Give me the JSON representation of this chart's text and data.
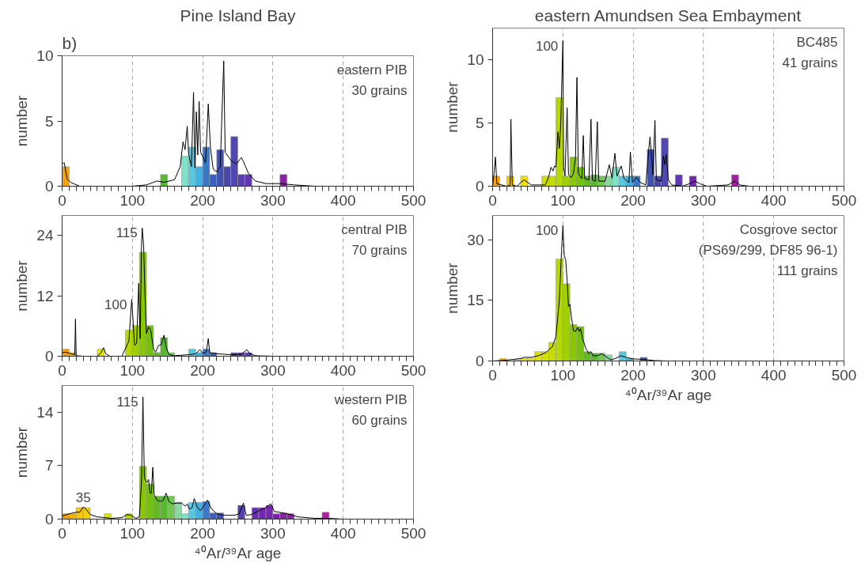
{
  "chart_data": [
    {
      "type": "histogram",
      "title": "Pine Island Bay",
      "ylabel": "number",
      "annotations": [
        "b)",
        "eastern PIB",
        "30 grains"
      ],
      "xlim": [
        0,
        500
      ],
      "ylim": [
        0,
        10
      ],
      "xticks": [
        0,
        100,
        200,
        300,
        400,
        500
      ],
      "yticks": [
        0,
        5,
        10
      ],
      "grid": "x",
      "bins": [
        0,
        10,
        20,
        30,
        40,
        50,
        60,
        70,
        80,
        90,
        100,
        110,
        120,
        130,
        140,
        150,
        160,
        170,
        180,
        190,
        200,
        210,
        220,
        230,
        240,
        250,
        260,
        270,
        280,
        290,
        300,
        310,
        320
      ],
      "values": [
        1.5,
        0,
        0,
        0,
        0,
        0,
        0,
        0,
        0,
        0,
        0,
        0,
        0,
        0,
        0.9,
        0,
        0,
        2.3,
        3,
        1.5,
        3,
        0.9,
        2.8,
        1.5,
        3.8,
        0.9,
        0.9,
        0,
        0,
        0,
        0,
        0.9
      ],
      "colors": [
        "#f0a010",
        "#f5b400",
        "#f7c600",
        "#f5d000",
        "#ece000",
        "#e6e600",
        "#dde400",
        "#d2e000",
        "#c6dc00",
        "#b4d800",
        "#9fd000",
        "#88c800",
        "#74c010",
        "#62ba20",
        "#58b830",
        "#70c850",
        "#88d8a0",
        "#80e0c8",
        "#58c8e0",
        "#40b0e0",
        "#3c78c8",
        "#3c60c0",
        "#4050b0",
        "#4848a8",
        "#5048b0",
        "#5840b0",
        "#6038b0",
        "#6830b0",
        "#7028b0",
        "#7828b0",
        "#8020b0",
        "#8820a8"
      ],
      "series": [
        {
          "type": "line",
          "color": "#000000",
          "x": [
            0,
            3,
            7,
            12,
            25,
            100,
            120,
            135,
            145,
            160,
            168,
            172,
            175,
            178,
            180,
            184,
            187,
            189,
            191,
            193,
            195,
            197,
            200,
            204,
            208,
            211,
            215,
            220,
            225,
            230,
            232,
            240,
            248,
            255,
            258,
            265,
            275,
            290,
            310,
            330,
            360,
            500
          ],
          "values": [
            1.7,
            1.8,
            0.6,
            0.3,
            0,
            0,
            0.1,
            0.4,
            0.3,
            0.5,
            1.5,
            3.4,
            2.8,
            4.6,
            2.5,
            1.5,
            7.2,
            1.4,
            5.7,
            2.4,
            6.5,
            2.6,
            2.3,
            1.8,
            6.3,
            3.0,
            1.3,
            1.1,
            1.5,
            9.6,
            2.6,
            2.0,
            1.7,
            2.2,
            1.9,
            1.0,
            0.4,
            0.2,
            0.2,
            0.1,
            0,
            0
          ]
        }
      ]
    },
    {
      "type": "histogram",
      "title": "eastern Amundsen Sea Embayment",
      "ylabel": "number",
      "annotations": [
        {
          "text": "100",
          "x": 100,
          "y": 11.5
        },
        "BC485",
        "41 grains"
      ],
      "xlim": [
        0,
        500
      ],
      "ylim": [
        0,
        12.5
      ],
      "xticks": [
        0,
        100,
        200,
        300,
        400,
        500
      ],
      "yticks": [
        0,
        5,
        10
      ],
      "grid": "x",
      "bins": [
        0,
        10,
        20,
        30,
        40,
        50,
        60,
        70,
        80,
        90,
        100,
        110,
        120,
        130,
        140,
        150,
        160,
        170,
        180,
        190,
        200,
        210,
        220,
        230,
        240,
        250,
        260,
        270,
        280,
        290,
        300,
        310,
        320,
        330,
        340,
        350
      ],
      "values": [
        0.8,
        0,
        0.8,
        0,
        0.8,
        0,
        0,
        0.8,
        0.8,
        7.0,
        0.8,
        2.3,
        1.5,
        0.8,
        0.9,
        0.8,
        0.8,
        1.5,
        0.8,
        0.8,
        0.8,
        0,
        2.9,
        0.8,
        3.8,
        0,
        0.9,
        0,
        0.8,
        0,
        0,
        0,
        0,
        0,
        0.9
      ],
      "colors": [
        "#f0a010",
        "#f5b400",
        "#f7c600",
        "#f5d000",
        "#ece000",
        "#e6e600",
        "#dde400",
        "#d2e000",
        "#c6dc00",
        "#b4d800",
        "#9fd000",
        "#88c800",
        "#74c010",
        "#62ba20",
        "#58b830",
        "#70c850",
        "#88d8a0",
        "#80e0c8",
        "#58c8e0",
        "#40b0e0",
        "#3c78c8",
        "#3c60c0",
        "#4050b0",
        "#4848a8",
        "#5048b0",
        "#5840b0",
        "#6038b0",
        "#6830b0",
        "#7028b0",
        "#7828b0",
        "#8020b0",
        "#8820a8",
        "#9020a8",
        "#9820a8",
        "#a020a0"
      ],
      "series": [
        {
          "type": "line",
          "color": "#000000",
          "x": [
            0,
            2,
            4,
            6,
            20,
            25,
            26,
            28,
            35,
            40,
            45,
            50,
            55,
            75,
            80,
            83,
            86,
            88,
            90,
            93,
            95,
            97,
            100,
            101,
            103,
            106,
            108,
            112,
            115,
            118,
            120,
            122,
            127,
            129,
            131,
            137,
            140,
            142,
            146,
            149,
            151,
            160,
            166,
            170,
            174,
            177,
            183,
            187,
            194,
            196,
            199,
            205,
            210,
            218,
            222,
            224,
            226,
            228,
            231,
            233,
            240,
            243,
            245,
            247,
            250,
            255,
            270,
            280,
            288,
            295,
            305,
            335,
            345,
            352,
            365,
            500
          ],
          "values": [
            0,
            1,
            2.3,
            0.2,
            0,
            0.1,
            5.3,
            0.1,
            0,
            0.3,
            0.5,
            0.3,
            0.1,
            0.1,
            0.8,
            1.5,
            1.2,
            1.6,
            1.5,
            4.3,
            3.0,
            5,
            11.5,
            1.5,
            0.8,
            6.2,
            0.9,
            0.7,
            1.0,
            2.3,
            8.6,
            1.0,
            0.6,
            4.0,
            0.6,
            0.5,
            5.3,
            0.5,
            0.4,
            5.1,
            0.4,
            0.4,
            1.7,
            0.6,
            2.6,
            0.8,
            1.6,
            0.6,
            0.3,
            2.7,
            0.3,
            0.7,
            0.3,
            0.1,
            2.8,
            3.9,
            2.5,
            0.9,
            5.2,
            0.5,
            0.4,
            2.4,
            1.7,
            2.5,
            0.5,
            0.1,
            0,
            0.2,
            0.4,
            0.2,
            0,
            0.1,
            0.4,
            0.1,
            0,
            0
          ]
        }
      ]
    },
    {
      "type": "histogram",
      "ylabel": "number",
      "annotations": [
        {
          "text": "100",
          "x": 99,
          "y": 11.3
        },
        {
          "text": "115",
          "x": 114,
          "y": 25.5
        },
        "central PIB",
        "70 grains"
      ],
      "xlim": [
        0,
        500
      ],
      "ylim": [
        0,
        28
      ],
      "xticks": [
        0,
        100,
        200,
        300,
        400,
        500
      ],
      "yticks": [
        0,
        12,
        24
      ],
      "grid": "x",
      "bins": [
        0,
        10,
        20,
        30,
        40,
        50,
        60,
        70,
        80,
        90,
        100,
        110,
        120,
        130,
        140,
        150,
        160,
        170,
        180,
        190,
        200,
        210,
        220,
        230,
        240,
        250,
        260,
        270
      ],
      "values": [
        1.4,
        0.7,
        0,
        0,
        0,
        1.4,
        0,
        0,
        0,
        5.2,
        6.1,
        20.7,
        6.1,
        0.7,
        3.7,
        0.7,
        0,
        0,
        1.4,
        0.7,
        1.4,
        0.7,
        0,
        0,
        0.7,
        0.7,
        0.7
      ],
      "colors": [
        "#f0a010",
        "#f5b400",
        "#f7c600",
        "#f5d000",
        "#ece000",
        "#e6e600",
        "#dde400",
        "#d2e000",
        "#c6dc00",
        "#b4d800",
        "#9fd000",
        "#88c800",
        "#74c010",
        "#62ba20",
        "#58b830",
        "#70c850",
        "#88d8a0",
        "#80e0c8",
        "#58c8e0",
        "#40b0e0",
        "#3c78c8",
        "#3c60c0",
        "#4050b0",
        "#4848a8",
        "#5048b0",
        "#5840b0",
        "#6038b0"
      ],
      "series": [
        {
          "type": "line",
          "color": "#000000",
          "x": [
            0,
            5,
            10,
            18,
            19,
            20,
            30,
            50,
            55,
            59,
            62,
            68,
            85,
            90,
            95,
            99,
            101,
            103,
            106,
            109,
            111,
            113,
            114,
            116,
            118,
            120,
            123,
            126,
            130,
            133,
            137,
            141,
            145,
            148,
            152,
            160,
            180,
            190,
            196,
            200,
            205,
            208,
            210,
            220,
            240,
            255,
            263,
            267,
            275,
            300,
            500
          ],
          "values": [
            0.7,
            0.8,
            0.6,
            0.3,
            7.4,
            0.1,
            0,
            0,
            0.6,
            1.7,
            0.5,
            0,
            0,
            1.5,
            3.0,
            11.3,
            7,
            2.2,
            2.5,
            14.5,
            3.5,
            22,
            25.5,
            22,
            12,
            4.5,
            5.8,
            5.2,
            1.5,
            0.8,
            2.1,
            2.3,
            4.2,
            1.8,
            0.3,
            0.1,
            0.3,
            0.5,
            1.3,
            0.6,
            0.8,
            3.5,
            0.7,
            0.5,
            0.3,
            0.4,
            1.3,
            0.5,
            0.1,
            0,
            0
          ]
        }
      ]
    },
    {
      "type": "histogram",
      "xlabel": "⁴⁰Ar/³⁹Ar age",
      "ylabel": "number",
      "annotations": [
        {
          "text": "100",
          "x": 100,
          "y": 33.5
        },
        "Cosgrove sector",
        "(PS69/299, DF85 96-1)",
        "111 grains"
      ],
      "xlim": [
        0,
        500
      ],
      "ylim": [
        0,
        36
      ],
      "xticks": [
        0,
        100,
        200,
        300,
        400,
        500
      ],
      "yticks": [
        0,
        15,
        30
      ],
      "grid": "x",
      "bins": [
        0,
        10,
        20,
        30,
        40,
        50,
        60,
        70,
        80,
        90,
        100,
        110,
        120,
        130,
        140,
        150,
        160,
        170,
        180,
        190,
        200,
        210,
        220
      ],
      "values": [
        0,
        0.6,
        0,
        0.3,
        0.6,
        0.6,
        2.3,
        2.3,
        4.6,
        25.2,
        19.1,
        9.0,
        8.5,
        2.3,
        1.9,
        1.9,
        1.5,
        0,
        2.3,
        0.6,
        0,
        0.9
      ],
      "colors": [
        "#f0a010",
        "#f5b400",
        "#f7c600",
        "#f5d000",
        "#ece000",
        "#e6e600",
        "#dde400",
        "#d2e000",
        "#c6dc00",
        "#b4d800",
        "#9fd000",
        "#88c800",
        "#74c010",
        "#62ba20",
        "#58b830",
        "#70c850",
        "#88d8a0",
        "#80e0c8",
        "#58c8e0",
        "#40b0e0",
        "#3c78c8",
        "#3c60c0"
      ],
      "series": [
        {
          "type": "line",
          "color": "#000000",
          "x": [
            0,
            20,
            40,
            45,
            55,
            65,
            75,
            85,
            90,
            95,
            98,
            100,
            102,
            104,
            106,
            108,
            110,
            112,
            115,
            118,
            121,
            123,
            125,
            128,
            133,
            137,
            140,
            143,
            150,
            155,
            160,
            168,
            175,
            182,
            190,
            200,
            215,
            230,
            250,
            500
          ],
          "values": [
            0,
            0.2,
            0.6,
            0.9,
            0.9,
            1.3,
            2.0,
            3.5,
            6,
            15,
            27,
            33.5,
            26,
            25,
            20,
            13.5,
            14,
            11,
            7.5,
            7.3,
            8.3,
            7.3,
            8.0,
            5.5,
            3.0,
            1.8,
            2.3,
            1.3,
            1.3,
            1.8,
            1.2,
            0.3,
            0.6,
            1.3,
            0.9,
            0.5,
            0.4,
            0.1,
            0,
            0
          ]
        }
      ]
    },
    {
      "type": "histogram",
      "xlabel": "⁴⁰Ar/³⁹Ar age",
      "ylabel": "number",
      "annotations": [
        {
          "text": "115",
          "x": 115,
          "y": 16
        },
        {
          "text": "35",
          "x": 30,
          "y": 1.6
        },
        "western PIB",
        "60 grains"
      ],
      "xlim": [
        0,
        500
      ],
      "ylim": [
        0,
        17.5
      ],
      "xticks": [
        0,
        100,
        200,
        300,
        400,
        500
      ],
      "yticks": [
        0,
        7,
        14
      ],
      "grid": "x",
      "bins": [
        0,
        10,
        20,
        30,
        40,
        50,
        60,
        70,
        80,
        90,
        100,
        110,
        120,
        130,
        140,
        150,
        160,
        170,
        180,
        190,
        200,
        210,
        220,
        230,
        240,
        250,
        260,
        270,
        280,
        290,
        300,
        310,
        320,
        330,
        340,
        350,
        360,
        370,
        380
      ],
      "values": [
        0.7,
        0.7,
        1.5,
        1.5,
        0,
        0,
        0.7,
        0,
        0,
        0.7,
        0,
        6.9,
        4.6,
        3.0,
        3.0,
        3.0,
        2.2,
        0.7,
        2.2,
        2.2,
        2.3,
        0.8,
        0.8,
        0,
        0,
        1.8,
        0,
        1.5,
        1.5,
        1.8,
        0.7,
        0.8,
        0.7,
        0,
        0,
        0,
        0,
        0.9
      ],
      "colors": [
        "#f0a010",
        "#f5b400",
        "#f7c600",
        "#f5d000",
        "#ece000",
        "#e6e600",
        "#dde400",
        "#d2e000",
        "#c6dc00",
        "#b4d800",
        "#9fd000",
        "#88c800",
        "#74c010",
        "#62ba20",
        "#58b830",
        "#70c850",
        "#88d8a0",
        "#80e0c8",
        "#58c8e0",
        "#40b0e0",
        "#3c78c8",
        "#3c60c0",
        "#4050b0",
        "#4848a8",
        "#5048b0",
        "#5840b0",
        "#6038b0",
        "#6830b0",
        "#7028b0",
        "#7828b0",
        "#8020b0",
        "#8820a8",
        "#9020a8",
        "#9820a8",
        "#a020a0",
        "#a820a0",
        "#b020a0",
        "#b020a0"
      ],
      "series": [
        {
          "type": "line",
          "color": "#000000",
          "x": [
            0,
            10,
            20,
            25,
            30,
            33,
            40,
            50,
            70,
            85,
            93,
            98,
            105,
            110,
            113,
            115,
            117,
            119,
            121,
            123,
            125,
            127,
            129,
            131,
            135,
            140,
            144,
            148,
            152,
            157,
            163,
            170,
            175,
            178,
            181,
            185,
            188,
            192,
            197,
            202,
            207,
            212,
            220,
            230,
            245,
            252,
            258,
            262,
            270,
            280,
            290,
            297,
            302,
            315,
            325,
            335,
            360,
            380,
            400,
            500
          ],
          "values": [
            0.4,
            0.7,
            0.9,
            0.9,
            1.6,
            1.4,
            0.6,
            0.3,
            0.1,
            0.2,
            0.6,
            0.5,
            0.1,
            0.3,
            5,
            16,
            5.5,
            5.0,
            4.8,
            5.2,
            3.4,
            3.4,
            6.8,
            3.2,
            2.5,
            2.3,
            2.5,
            3.4,
            2.3,
            2.0,
            2.1,
            2.1,
            1.7,
            2.0,
            1.3,
            1.5,
            2.7,
            1.6,
            1.1,
            1.8,
            2.5,
            1.4,
            0.7,
            0.5,
            0.5,
            0.7,
            2.1,
            0.5,
            0.6,
            1.1,
            1.5,
            2.0,
            1.0,
            0.8,
            0.6,
            0.3,
            0.1,
            0.1,
            0,
            0
          ]
        }
      ]
    }
  ]
}
